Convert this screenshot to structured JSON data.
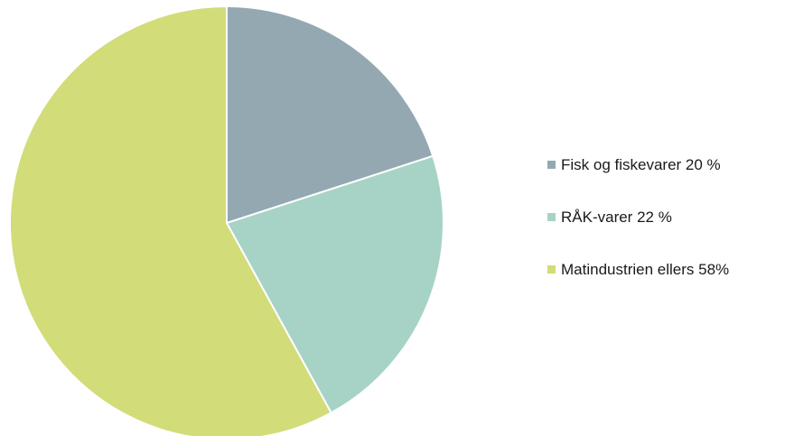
{
  "chart_data": {
    "type": "pie",
    "slices": [
      {
        "label": "Fisk og fiskevarer 20 %",
        "value": 20,
        "color": "#94a8b2"
      },
      {
        "label": "RÅK-varer 22 %",
        "value": 22,
        "color": "#a6d3c6"
      },
      {
        "label": "Matindustrien ellers 58%",
        "value": 58,
        "color": "#d2dc79"
      }
    ],
    "start": "12 o'clock",
    "direction": "clockwise",
    "legend_position": "right",
    "slice_border_color": "#ffffff"
  }
}
